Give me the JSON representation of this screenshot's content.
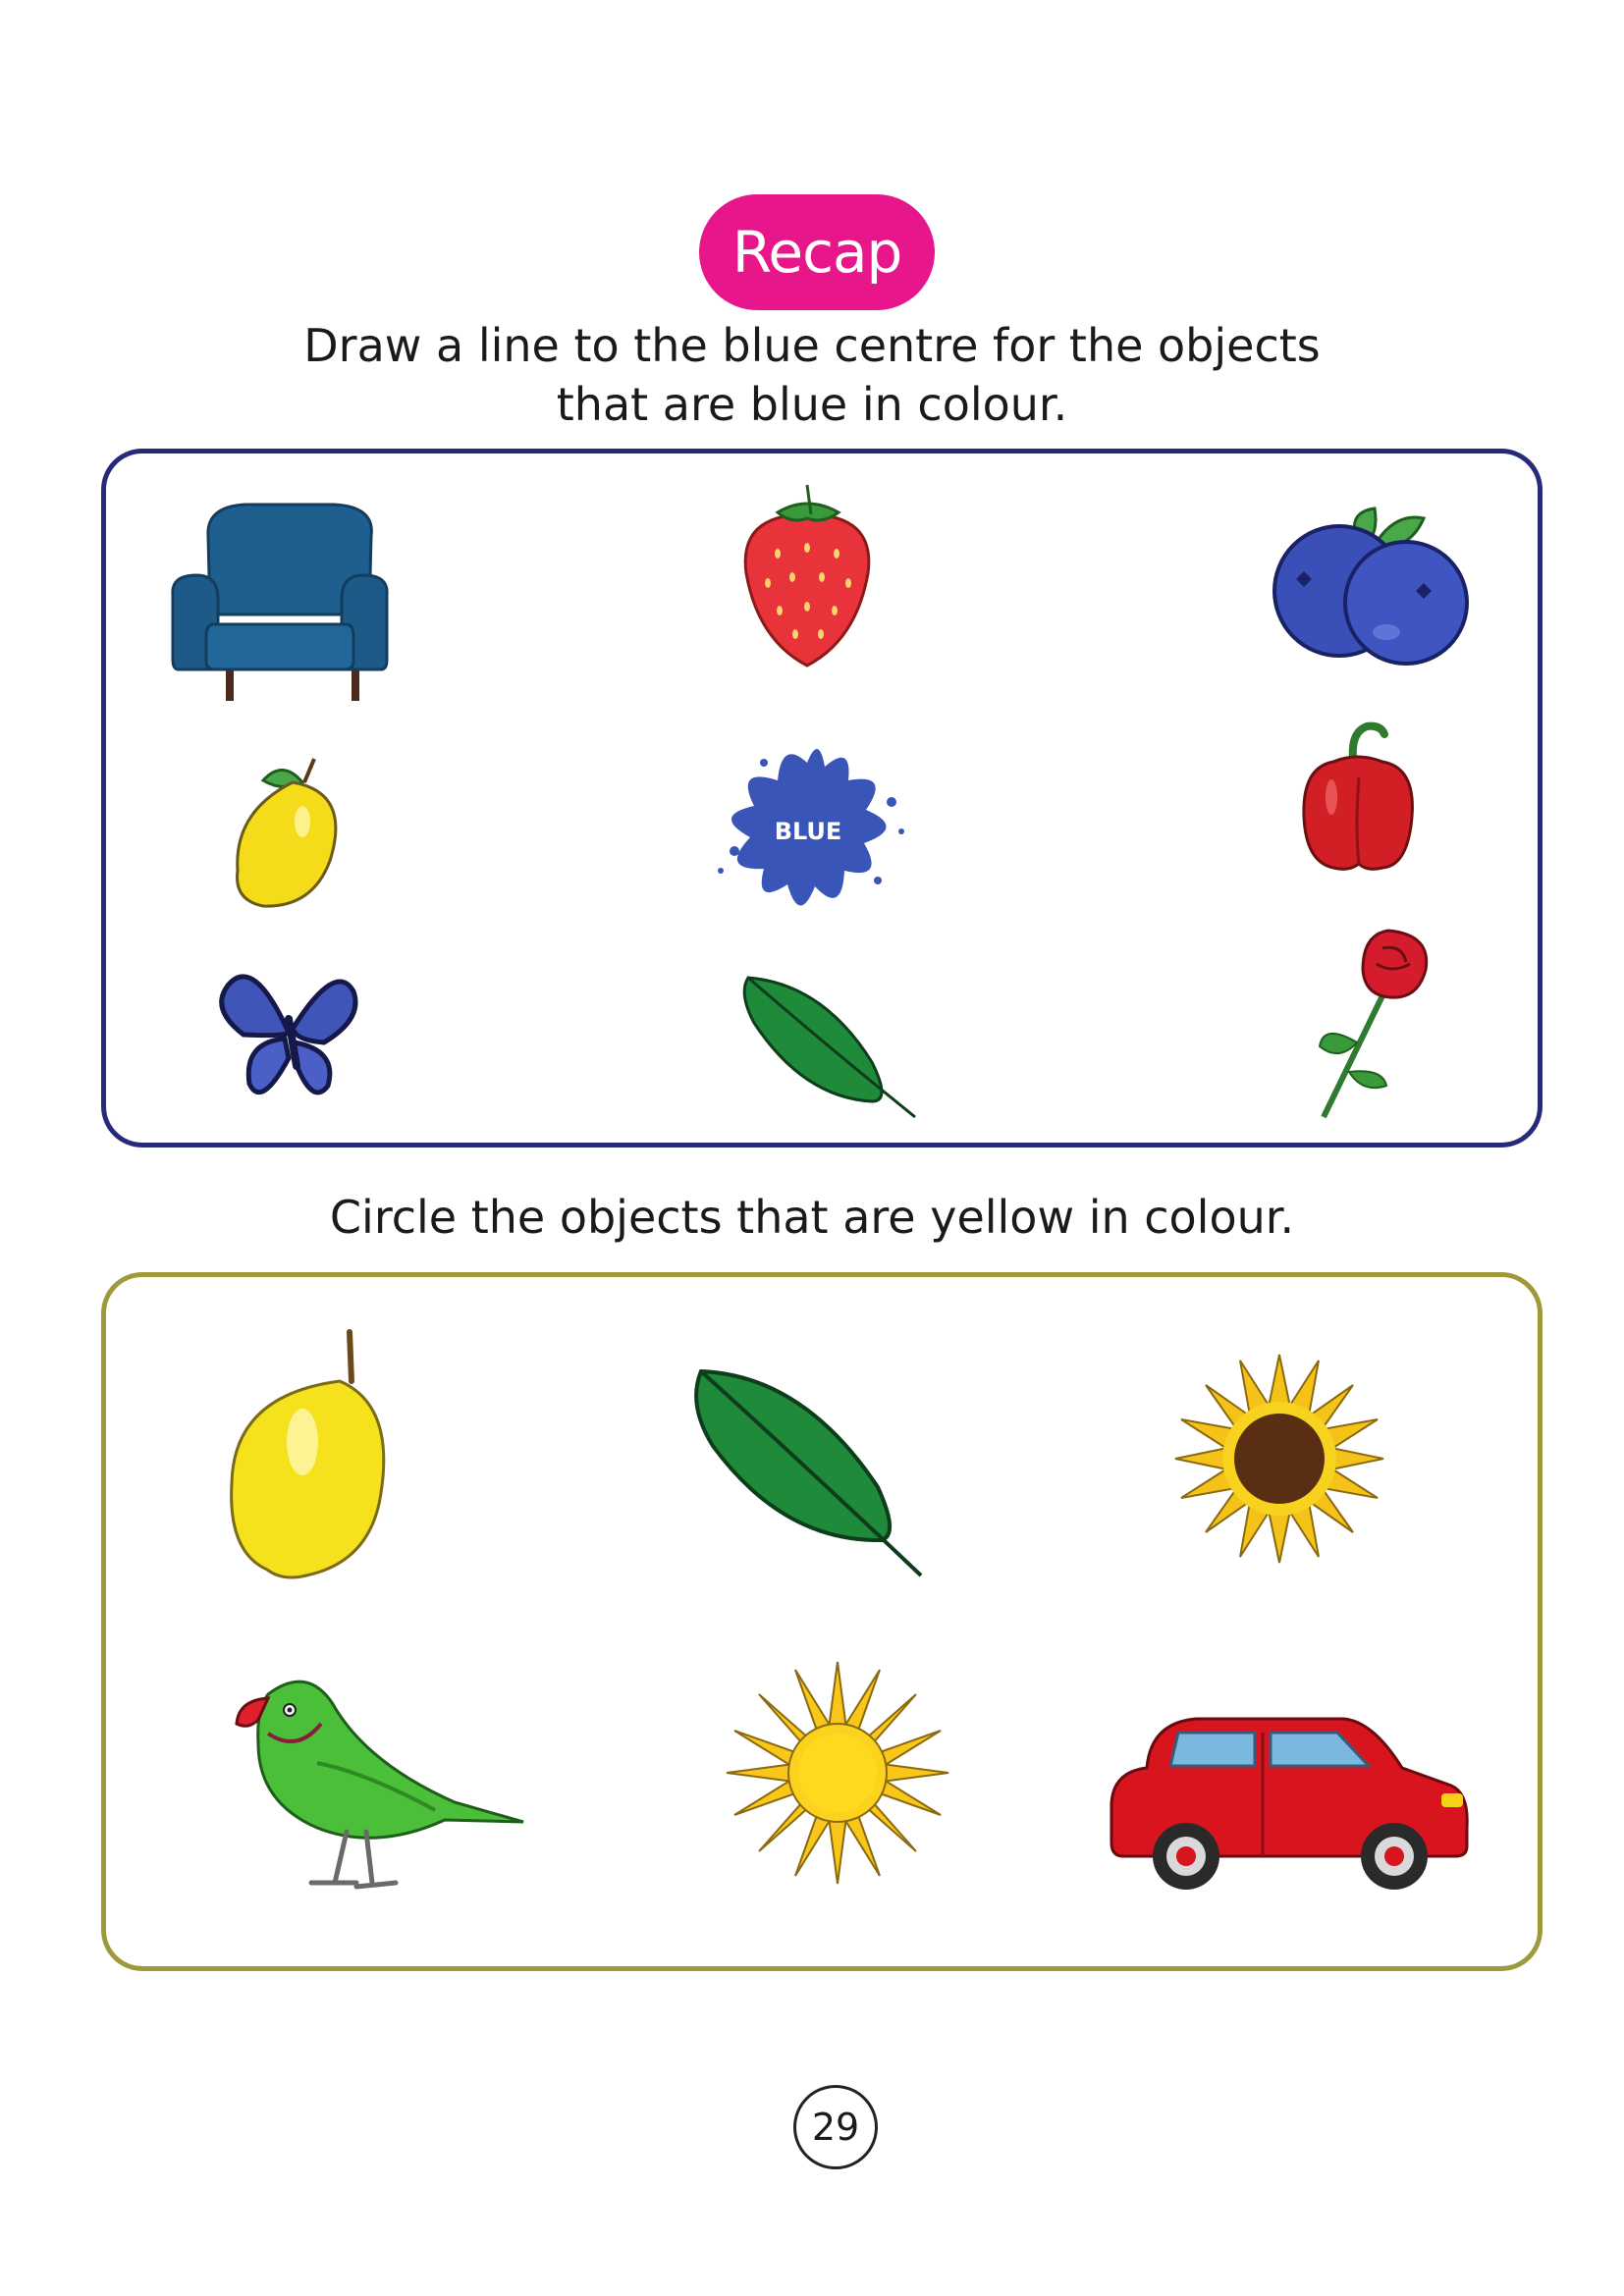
{
  "header": {
    "badge_label": "Recap"
  },
  "activity_1": {
    "instruction_line_1": "Draw a line to the blue centre for the objects",
    "instruction_line_2": "that are blue in colour.",
    "centre_label": "BLUE",
    "border_color": "#262a7a",
    "objects": [
      "armchair",
      "strawberry",
      "blueberries",
      "lemon",
      "blue-paint-splash",
      "red-bell-pepper",
      "butterfly",
      "leaf",
      "rose"
    ]
  },
  "activity_2": {
    "instruction": "Circle the objects that are yellow in colour.",
    "border_color": "#9e9a3a",
    "objects": [
      "lemon",
      "leaf",
      "sunflower",
      "parrot",
      "sun",
      "car"
    ]
  },
  "footer": {
    "page_number": "29"
  },
  "colors": {
    "badge": "#e8168b",
    "blue": "#3a55b8",
    "yellow": "#f5dc1a"
  }
}
